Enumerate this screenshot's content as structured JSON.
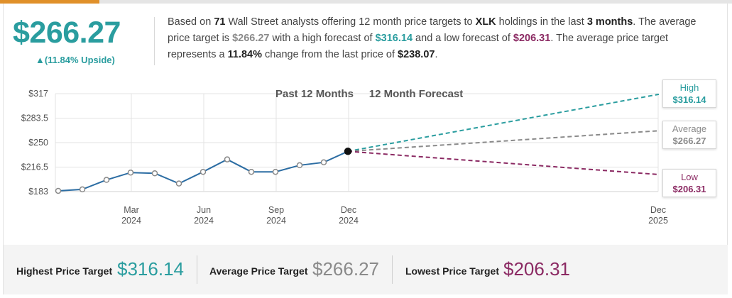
{
  "header": {
    "average_price": "$266.27",
    "upside": "▲(11.84% Upside)",
    "summary": {
      "p1": "Based on ",
      "analysts": "71",
      "p2": " Wall Street analysts offering 12 month price targets to ",
      "ticker": "XLK",
      "p3": " holdings in the last ",
      "period": "3 months",
      "p4": ". The average price target is ",
      "avg": "$266.27",
      "p5": " with a high forecast of ",
      "high": "$316.14",
      "p6": " and a low forecast of ",
      "low": "$206.31",
      "p7": ". The average price target represents a ",
      "change": "11.84%",
      "p8": " change from the last price of ",
      "last": "$238.07",
      "p9": "."
    }
  },
  "colors": {
    "teal": "#2a9d9f",
    "grey": "#8a8a8a",
    "purple": "#8b2a63",
    "line": "#2c6da3"
  },
  "chart_data": {
    "type": "line",
    "legend": [
      "Past 12 Months",
      "12 Month Forecast"
    ],
    "y_ticks": [
      "$317",
      "$283.5",
      "$250",
      "$216.5",
      "$183"
    ],
    "ylim": [
      183,
      317
    ],
    "x_ticks": [
      {
        "month": "Mar",
        "year": "2024"
      },
      {
        "month": "Jun",
        "year": "2024"
      },
      {
        "month": "Sep",
        "year": "2024"
      },
      {
        "month": "Dec",
        "year": "2024"
      },
      {
        "month": "Dec",
        "year": "2025"
      }
    ],
    "history": [
      {
        "x": "2024-01",
        "y": 184
      },
      {
        "x": "2024-02",
        "y": 186
      },
      {
        "x": "2024-03",
        "y": 199
      },
      {
        "x": "2024-04",
        "y": 209
      },
      {
        "x": "2024-05",
        "y": 208
      },
      {
        "x": "2024-06",
        "y": 194
      },
      {
        "x": "2024-07",
        "y": 210
      },
      {
        "x": "2024-08",
        "y": 227
      },
      {
        "x": "2024-09",
        "y": 210
      },
      {
        "x": "2024-10",
        "y": 210
      },
      {
        "x": "2024-11",
        "y": 219
      },
      {
        "x": "2024-12",
        "y": 223
      },
      {
        "x": "2025-01",
        "y": 238.07
      }
    ],
    "forecast": {
      "high": {
        "label": "High",
        "value": 316.14,
        "text": "$316.14"
      },
      "average": {
        "label": "Average",
        "value": 266.27,
        "text": "$266.27"
      },
      "low": {
        "label": "Low",
        "value": 206.31,
        "text": "$206.31"
      }
    }
  },
  "footer": {
    "highest_label": "Highest Price Target",
    "highest_value": "$316.14",
    "average_label": "Average Price Target",
    "average_value": "$266.27",
    "lowest_label": "Lowest Price Target",
    "lowest_value": "$206.31"
  }
}
